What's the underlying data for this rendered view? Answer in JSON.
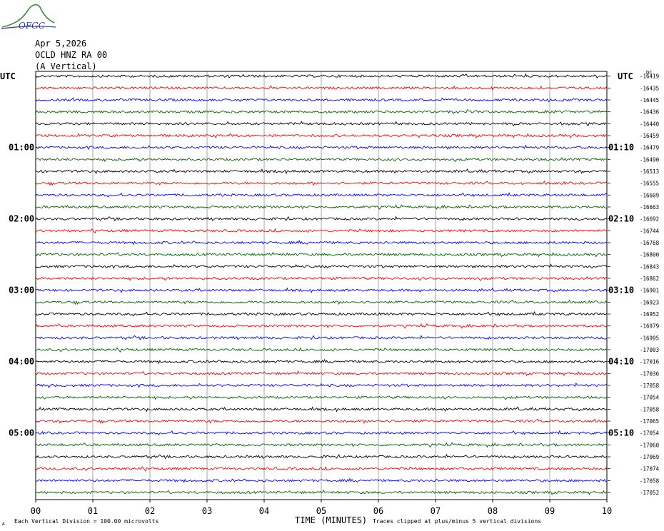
{
  "logo": {
    "text": "OFGC"
  },
  "header": {
    "date": "Apr 5,2026",
    "station": "OCLD HNZ RA 00",
    "component": "(A Vertical)"
  },
  "axes": {
    "left_tz": "UTC",
    "right_tz": "UTC",
    "dc_label": "DC",
    "xlabel": "TIME (MINUTES)"
  },
  "footer": {
    "mark": "A",
    "scale_note": "Each Vertical Division =  100.00 microvolts",
    "clip_note": "Traces clipped at plus/minus 5 vertical divisions"
  },
  "colors": {
    "cycle": [
      "#000000",
      "#ff0000",
      "#0000ff",
      "#006400"
    ],
    "plot_bg": "#ffffff",
    "grid": "#808080"
  },
  "chart_data": {
    "type": "line",
    "title": "",
    "xlabel": "TIME (MINUTES)",
    "ylabel": "",
    "xlim": [
      0,
      10
    ],
    "x_ticks": [
      "00",
      "01",
      "02",
      "03",
      "04",
      "05",
      "06",
      "07",
      "08",
      "09",
      "10"
    ],
    "grid": true,
    "trace_count": 36,
    "minutes_per_trace": 10,
    "left_hour_labels": [
      {
        "trace": 6,
        "text": "01:00"
      },
      {
        "trace": 12,
        "text": "02:00"
      },
      {
        "trace": 18,
        "text": "03:00"
      },
      {
        "trace": 24,
        "text": "04:00"
      },
      {
        "trace": 30,
        "text": "05:00"
      }
    ],
    "right_hour_labels": [
      {
        "trace": 6,
        "text": "01:10"
      },
      {
        "trace": 12,
        "text": "02:10"
      },
      {
        "trace": 18,
        "text": "03:10"
      },
      {
        "trace": 24,
        "text": "04:10"
      },
      {
        "trace": 30,
        "text": "05:10"
      }
    ],
    "dc_offsets": [
      "-16419",
      "-16435",
      "-16445",
      "-16436",
      "-16440",
      "-16459",
      "-16479",
      "-16490",
      "-16513",
      "-16555",
      "-16609",
      "-16663",
      "-16692",
      "-16744",
      "-16768",
      "-16800",
      "-16843",
      "-16862",
      "-16901",
      "-16923",
      "-16952",
      "-16979",
      "-16995",
      "-17003",
      "-17016",
      "-17036",
      "-17058",
      "-17054",
      "-17058",
      "-17065",
      "-17054",
      "-17060",
      "-17069",
      "-17074",
      "-17058",
      "-17052"
    ]
  }
}
